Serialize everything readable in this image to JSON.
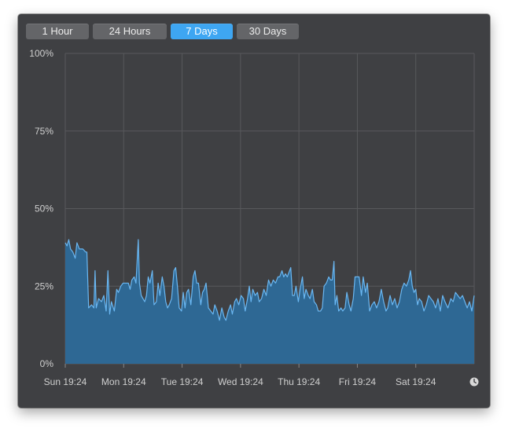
{
  "range_tabs": [
    {
      "label": "1 Hour",
      "active": false
    },
    {
      "label": "24 Hours",
      "active": false
    },
    {
      "label": "7 Days",
      "active": true
    },
    {
      "label": "30 Days",
      "active": false
    }
  ],
  "colors": {
    "background": "#3f4043",
    "active_tab": "#3ea6f2",
    "area_fill": "#2e6894",
    "line": "#6ab7f2",
    "grid": "#58595c"
  },
  "clock_icon": "clock-icon",
  "chart_data": {
    "type": "area",
    "title": "",
    "xlabel": "",
    "ylabel": "",
    "ylim": [
      0,
      100
    ],
    "y_ticks": [
      "100%",
      "75%",
      "50%",
      "25%",
      "0%"
    ],
    "x_ticks": [
      "Sun 19:24",
      "Mon 19:24",
      "Tue 19:24",
      "Wed 19:24",
      "Thu 19:24",
      "Fri 19:24",
      "Sat 19:24"
    ],
    "x_range_days": [
      0,
      7
    ],
    "grid": true,
    "series": [
      {
        "values": [
          [
            0.0,
            39
          ],
          [
            0.03,
            38
          ],
          [
            0.06,
            40
          ],
          [
            0.09,
            37
          ],
          [
            0.13,
            36
          ],
          [
            0.17,
            34
          ],
          [
            0.2,
            39
          ],
          [
            0.24,
            37
          ],
          [
            0.3,
            37
          ],
          [
            0.35,
            36
          ],
          [
            0.37,
            36
          ],
          [
            0.4,
            18
          ],
          [
            0.45,
            19
          ],
          [
            0.49,
            18
          ],
          [
            0.51,
            30
          ],
          [
            0.53,
            18
          ],
          [
            0.57,
            21
          ],
          [
            0.62,
            20
          ],
          [
            0.66,
            22
          ],
          [
            0.7,
            17
          ],
          [
            0.73,
            30
          ],
          [
            0.76,
            16
          ],
          [
            0.79,
            20
          ],
          [
            0.84,
            17
          ],
          [
            0.88,
            24
          ],
          [
            0.91,
            23
          ],
          [
            0.95,
            25
          ],
          [
            0.99,
            26
          ],
          [
            1.04,
            26
          ],
          [
            1.08,
            26
          ],
          [
            1.11,
            24
          ],
          [
            1.14,
            27
          ],
          [
            1.18,
            28
          ],
          [
            1.21,
            26
          ],
          [
            1.25,
            40
          ],
          [
            1.27,
            26
          ],
          [
            1.3,
            22
          ],
          [
            1.33,
            21
          ],
          [
            1.36,
            20
          ],
          [
            1.39,
            22
          ],
          [
            1.42,
            28
          ],
          [
            1.45,
            26
          ],
          [
            1.49,
            30
          ],
          [
            1.52,
            19
          ],
          [
            1.56,
            20
          ],
          [
            1.59,
            26
          ],
          [
            1.62,
            22
          ],
          [
            1.66,
            28
          ],
          [
            1.69,
            25
          ],
          [
            1.72,
            20
          ],
          [
            1.75,
            18
          ],
          [
            1.78,
            19
          ],
          [
            1.82,
            21
          ],
          [
            1.86,
            30
          ],
          [
            1.89,
            31
          ],
          [
            1.92,
            25
          ],
          [
            1.95,
            18
          ],
          [
            1.99,
            17
          ],
          [
            2.02,
            23
          ],
          [
            2.05,
            18
          ],
          [
            2.08,
            23
          ],
          [
            2.11,
            24
          ],
          [
            2.15,
            19
          ],
          [
            2.19,
            28
          ],
          [
            2.22,
            30
          ],
          [
            2.25,
            26
          ],
          [
            2.28,
            26
          ],
          [
            2.32,
            19
          ],
          [
            2.35,
            23
          ],
          [
            2.38,
            24
          ],
          [
            2.41,
            26
          ],
          [
            2.45,
            18
          ],
          [
            2.49,
            17
          ],
          [
            2.53,
            16
          ],
          [
            2.56,
            19
          ],
          [
            2.6,
            17
          ],
          [
            2.64,
            14
          ],
          [
            2.68,
            18
          ],
          [
            2.72,
            15
          ],
          [
            2.75,
            14
          ],
          [
            2.79,
            17
          ],
          [
            2.83,
            19
          ],
          [
            2.86,
            16
          ],
          [
            2.9,
            20
          ],
          [
            2.93,
            21
          ],
          [
            2.97,
            19
          ],
          [
            3.01,
            22
          ],
          [
            3.05,
            21
          ],
          [
            3.08,
            17
          ],
          [
            3.12,
            21
          ],
          [
            3.15,
            25
          ],
          [
            3.18,
            20
          ],
          [
            3.21,
            24
          ],
          [
            3.25,
            22
          ],
          [
            3.29,
            23
          ],
          [
            3.32,
            20
          ],
          [
            3.36,
            21
          ],
          [
            3.4,
            24
          ],
          [
            3.44,
            22
          ],
          [
            3.48,
            27
          ],
          [
            3.52,
            25
          ],
          [
            3.56,
            27
          ],
          [
            3.6,
            26
          ],
          [
            3.64,
            28
          ],
          [
            3.67,
            28
          ],
          [
            3.71,
            30
          ],
          [
            3.74,
            28
          ],
          [
            3.77,
            29
          ],
          [
            3.8,
            28
          ],
          [
            3.84,
            30
          ],
          [
            3.86,
            31
          ],
          [
            3.89,
            22
          ],
          [
            3.92,
            22
          ],
          [
            3.95,
            25
          ],
          [
            3.99,
            20
          ],
          [
            4.02,
            24
          ],
          [
            4.06,
            28
          ],
          [
            4.09,
            21
          ],
          [
            4.12,
            24
          ],
          [
            4.16,
            22
          ],
          [
            4.19,
            21
          ],
          [
            4.23,
            24
          ],
          [
            4.26,
            20
          ],
          [
            4.3,
            19
          ],
          [
            4.33,
            17
          ],
          [
            4.37,
            17
          ],
          [
            4.4,
            18
          ],
          [
            4.43,
            25
          ],
          [
            4.47,
            26
          ],
          [
            4.51,
            28
          ],
          [
            4.54,
            27
          ],
          [
            4.57,
            27
          ],
          [
            4.6,
            33
          ],
          [
            4.62,
            19
          ],
          [
            4.65,
            22
          ],
          [
            4.68,
            17
          ],
          [
            4.72,
            18
          ],
          [
            4.75,
            17
          ],
          [
            4.79,
            18
          ],
          [
            4.82,
            23
          ],
          [
            4.86,
            19
          ],
          [
            4.89,
            17
          ],
          [
            4.93,
            21
          ],
          [
            4.96,
            28
          ],
          [
            5.0,
            28
          ],
          [
            5.03,
            28
          ],
          [
            5.07,
            22
          ],
          [
            5.1,
            28
          ],
          [
            5.14,
            23
          ],
          [
            5.17,
            26
          ],
          [
            5.21,
            17
          ],
          [
            5.25,
            19
          ],
          [
            5.29,
            20
          ],
          [
            5.33,
            18
          ],
          [
            5.37,
            20
          ],
          [
            5.41,
            24
          ],
          [
            5.45,
            20
          ],
          [
            5.49,
            17
          ],
          [
            5.52,
            18
          ],
          [
            5.56,
            22
          ],
          [
            5.6,
            19
          ],
          [
            5.64,
            21
          ],
          [
            5.68,
            18
          ],
          [
            5.72,
            20
          ],
          [
            5.76,
            24
          ],
          [
            5.8,
            26
          ],
          [
            5.84,
            25
          ],
          [
            5.88,
            27
          ],
          [
            5.91,
            30
          ],
          [
            5.94,
            25
          ],
          [
            5.97,
            23
          ],
          [
            6.0,
            24
          ],
          [
            6.03,
            19
          ],
          [
            6.06,
            21
          ],
          [
            6.1,
            20
          ],
          [
            6.14,
            17
          ],
          [
            6.18,
            19
          ],
          [
            6.22,
            22
          ],
          [
            6.26,
            21
          ],
          [
            6.3,
            20
          ],
          [
            6.34,
            18
          ],
          [
            6.38,
            21
          ],
          [
            6.42,
            17
          ],
          [
            6.46,
            22
          ],
          [
            6.5,
            20
          ],
          [
            6.55,
            18
          ],
          [
            6.6,
            21
          ],
          [
            6.64,
            20
          ],
          [
            6.68,
            23
          ],
          [
            6.72,
            22
          ],
          [
            6.76,
            21
          ],
          [
            6.8,
            22
          ],
          [
            6.84,
            20
          ],
          [
            6.88,
            18
          ],
          [
            6.92,
            20
          ],
          [
            6.96,
            17
          ],
          [
            7.0,
            22
          ]
        ]
      }
    ]
  }
}
